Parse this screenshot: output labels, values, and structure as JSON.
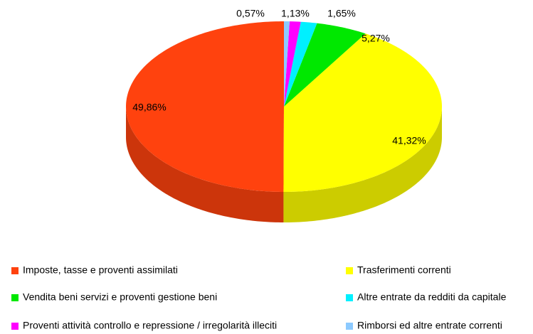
{
  "chart_data": {
    "type": "pie",
    "categories": [
      "Imposte, tasse e proventi assimilati",
      "Trasferimenti correnti",
      "Vendita beni servizi e proventi gestione beni",
      "Altre entrate da redditi da capitale",
      "Proventi attività controllo e repressione / irregolarità illeciti",
      "Rimborsi ed altre entrate correnti"
    ],
    "values": [
      49.86,
      41.32,
      5.27,
      1.65,
      1.13,
      0.57
    ],
    "value_labels": [
      "49,86%",
      "41,32%",
      "5,27%",
      "1,65%",
      "1,13%",
      "0,57%"
    ],
    "colors": [
      "#ff420e",
      "#ffff00",
      "#00e800",
      "#00f0ff",
      "#ff00ff",
      "#8ccaff"
    ],
    "legend": "bottom"
  }
}
